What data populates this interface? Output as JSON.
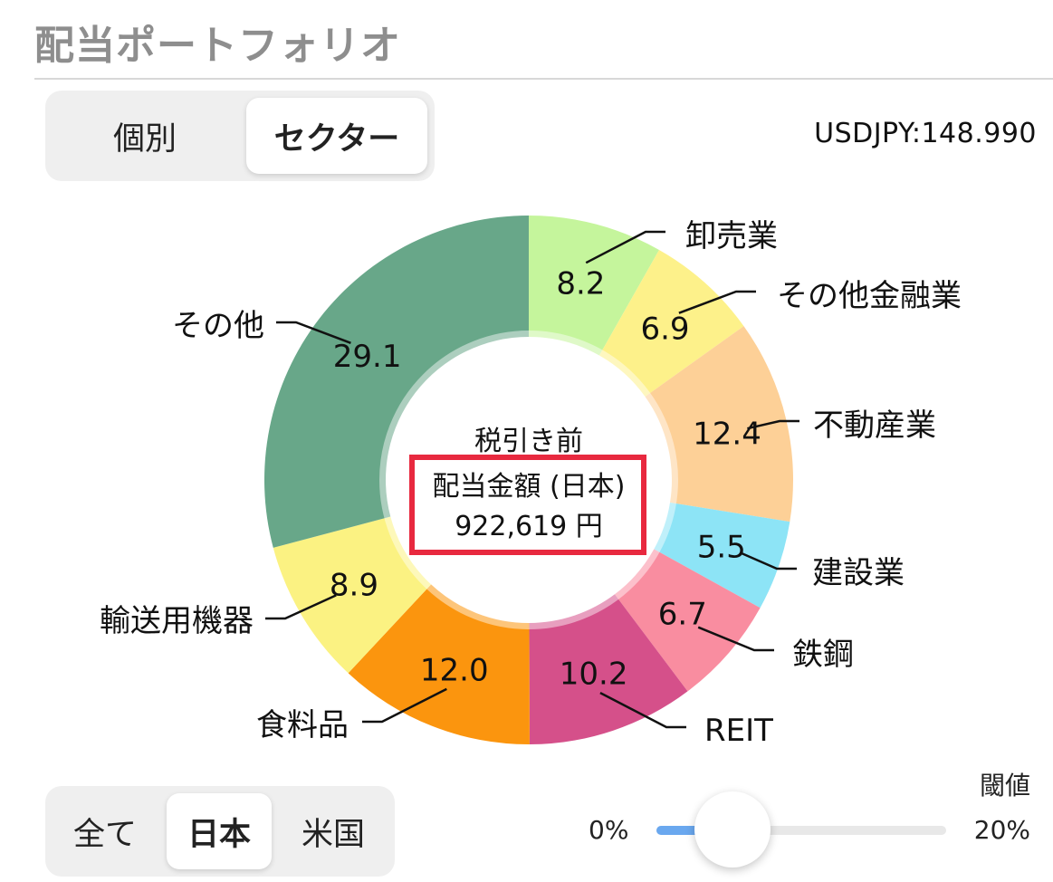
{
  "header": {
    "title": "配当ポートフォリオ"
  },
  "view_toggle": {
    "options": [
      {
        "label": "個別",
        "active": false
      },
      {
        "label": "セクター",
        "active": true
      }
    ]
  },
  "fx_rate": "USDJPY:148.990",
  "donut": {
    "center_line1": "税引き前",
    "center_line2": "配当金額 (日本)",
    "center_line3": "922,619 円",
    "highlight_color": "#e8293f"
  },
  "chart_data": {
    "type": "pie",
    "style": "donut",
    "slices": [
      {
        "label": "卸売業",
        "value": 8.2,
        "color": "#c5f59c"
      },
      {
        "label": "その他金融業",
        "value": 6.9,
        "color": "#fdf18a"
      },
      {
        "label": "不動産業",
        "value": 12.4,
        "color": "#fdd097"
      },
      {
        "label": "建設業",
        "value": 5.5,
        "color": "#8de4f6"
      },
      {
        "label": "鉄鋼",
        "value": 6.7,
        "color": "#f98da0"
      },
      {
        "label": "REIT",
        "value": 10.2,
        "color": "#d5508a"
      },
      {
        "label": "食料品",
        "value": 12.0,
        "color": "#fb950e"
      },
      {
        "label": "輸送用機器",
        "value": 8.9,
        "color": "#fbf282"
      },
      {
        "label": "その他",
        "value": 29.1,
        "color": "#68a789"
      }
    ]
  },
  "region_toggle": {
    "options": [
      {
        "label": "全て",
        "active": false
      },
      {
        "label": "日本",
        "active": true
      },
      {
        "label": "米国",
        "active": false
      }
    ]
  },
  "threshold": {
    "label": "閾値",
    "min_label": "0%",
    "max_label": "20%",
    "fraction": 0.2,
    "fill_color": "#6aa8ef"
  }
}
